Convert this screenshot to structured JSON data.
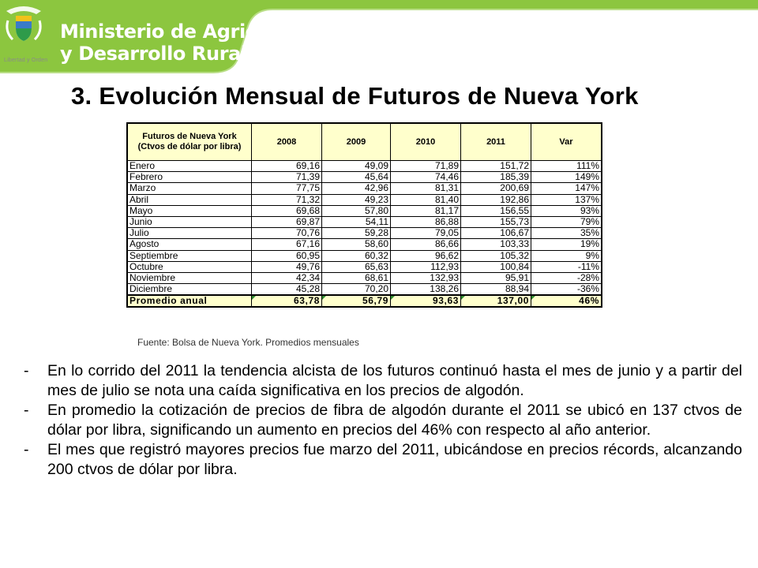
{
  "header": {
    "ministry_line1": "Ministerio de Agricultura",
    "ministry_line2": "y Desarrollo Rural",
    "motto": "Libertad y Orden",
    "logo_icon": "colombia-coat-of-arms-icon",
    "brand_color": "#8cc63f"
  },
  "title": "3.  Evolución Mensual de Futuros de Nueva York",
  "table": {
    "headers": [
      "Futuros de Nueva York (Ctvos de dólar por libra)",
      "2008",
      "2009",
      "2010",
      "2011",
      "Var"
    ],
    "header_bg": "#ffffcc",
    "rows": [
      [
        "Enero",
        "69,16",
        "49,09",
        "71,89",
        "151,72",
        "111%"
      ],
      [
        "Febrero",
        "71,39",
        "45,64",
        "74,46",
        "185,39",
        "149%"
      ],
      [
        "Marzo",
        "77,75",
        "42,96",
        "81,31",
        "200,69",
        "147%"
      ],
      [
        "Abril",
        "71,32",
        "49,23",
        "81,40",
        "192,86",
        "137%"
      ],
      [
        "Mayo",
        "69,68",
        "57,80",
        "81,17",
        "156,55",
        "93%"
      ],
      [
        "Junio",
        "69,87",
        "54,11",
        "86,88",
        "155,73",
        "79%"
      ],
      [
        "Julio",
        "70,76",
        "59,28",
        "79,05",
        "106,67",
        "35%"
      ],
      [
        "Agosto",
        "67,16",
        "58,60",
        "86,66",
        "103,33",
        "19%"
      ],
      [
        "Septiembre",
        "60,95",
        "60,32",
        "96,62",
        "105,32",
        "9%"
      ],
      [
        "Octubre",
        "49,76",
        "65,63",
        "112,93",
        "100,84",
        "-11%"
      ],
      [
        "Noviembre",
        "42,34",
        "68,61",
        "132,93",
        "95,91",
        "-28%"
      ],
      [
        "Diciembre",
        "45,28",
        "70,20",
        "138,26",
        "88,94",
        "-36%"
      ]
    ],
    "total": [
      "Promedio anual",
      "63,78",
      "56,79",
      "93,63",
      "137,00",
      "46%"
    ]
  },
  "source": "Fuente: Bolsa de Nueva York.  Promedios mensuales",
  "bullets": [
    "En lo corrido del 2011 la tendencia alcista de los futuros continuó hasta el mes de junio y a partir del mes de julio se nota una caída significativa en los precios de algodón.",
    "En promedio la cotización de precios de fibra de algodón durante el 2011 se ubicó en 137 ctvos de dólar por libra, significando un aumento en precios del 46% con respecto al año anterior.",
    "El mes que registró mayores precios fue marzo del 2011, ubicándose en precios récords, alcanzando 200 ctvos de dólar  por libra."
  ]
}
